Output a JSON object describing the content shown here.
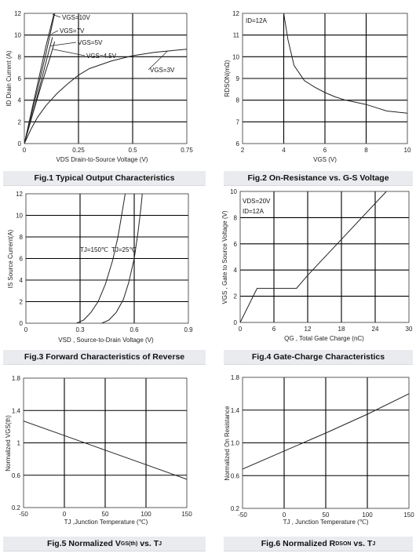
{
  "captions": [
    "Fig.1 Typical Output Characteristics",
    "Fig.2 On-Resistance vs. G-S Voltage",
    "Fig.3 Forward Characteristics of Reverse",
    "Fig.4 Gate-Charge Characteristics",
    "Fig.5 Normalized V GS(th) vs. TJ",
    "Fig.6 Normalized RDSON vs. TJ"
  ],
  "chart_data": [
    {
      "type": "line",
      "title": "Fig.1 Typical Output Characteristics",
      "xlabel": "VDS  Drain-to-Source Voltage (V)",
      "ylabel": "ID Drain Current (A)",
      "xlim": [
        0,
        0.75
      ],
      "ylim": [
        0,
        12
      ],
      "xticks": [
        "0",
        "0.25",
        "0.5",
        "0.75"
      ],
      "yticks": [
        "0",
        "2",
        "4",
        "6",
        "8",
        "10",
        "12"
      ],
      "grid": true,
      "series": [
        {
          "name": "VGS=10V",
          "x": [
            0,
            0.05,
            0.1,
            0.15
          ],
          "y": [
            0,
            4.5,
            9,
            13
          ]
        },
        {
          "name": "VGS=7V",
          "x": [
            0,
            0.05,
            0.1,
            0.14
          ],
          "y": [
            0,
            4.1,
            8.3,
            12
          ]
        },
        {
          "name": "VGS=5V",
          "x": [
            0,
            0.05,
            0.1,
            0.13
          ],
          "y": [
            0,
            3.6,
            7.5,
            9.8
          ]
        },
        {
          "name": "VGS=4.5V",
          "x": [
            0,
            0.04,
            0.08,
            0.12,
            0.14
          ],
          "y": [
            0,
            2.8,
            5.5,
            8.0,
            9.4
          ]
        },
        {
          "name": "VGS=3V",
          "x": [
            0,
            0.03,
            0.06,
            0.1,
            0.15,
            0.2,
            0.25,
            0.3,
            0.4,
            0.5,
            0.6,
            0.7,
            0.75
          ],
          "y": [
            0,
            1.3,
            2.4,
            3.5,
            4.6,
            5.5,
            6.3,
            6.9,
            7.6,
            8.1,
            8.4,
            8.6,
            8.7
          ]
        }
      ]
    },
    {
      "type": "line",
      "title": "Fig.2 On-Resistance vs. G-S Voltage",
      "xlabel": "VGS (V)",
      "ylabel": "RDSON(mΩ)",
      "annotation": "ID=12A",
      "xlim": [
        2,
        10
      ],
      "ylim": [
        6,
        12
      ],
      "xticks": [
        "2",
        "4",
        "6",
        "8",
        "10"
      ],
      "yticks": [
        "6",
        "7",
        "8",
        "9",
        "10",
        "11",
        "12"
      ],
      "grid": true,
      "series": [
        {
          "name": "",
          "x": [
            4.0,
            4.2,
            4.5,
            5.0,
            5.5,
            6.0,
            6.5,
            7.0,
            7.5,
            8.0,
            8.5,
            9.0,
            9.5,
            10.0
          ],
          "y": [
            12.0,
            10.8,
            9.6,
            8.9,
            8.6,
            8.35,
            8.15,
            8.0,
            7.9,
            7.8,
            7.65,
            7.5,
            7.45,
            7.4
          ]
        }
      ]
    },
    {
      "type": "line",
      "title": "Fig.3 Forward Characteristics of Reverse",
      "xlabel": "VSD , Source-to-Drain Voltage (V)",
      "ylabel": "IS Source Current(A)",
      "xlim": [
        0,
        0.9
      ],
      "ylim": [
        0,
        12
      ],
      "xticks": [
        "0",
        "0.3",
        "0.6",
        "0.9"
      ],
      "yticks": [
        "0",
        "2",
        "4",
        "6",
        "8",
        "10",
        "12"
      ],
      "grid": true,
      "labels": [
        "TJ=150℃",
        "TJ=25℃"
      ],
      "series": [
        {
          "name": "TJ=150℃",
          "x": [
            0.28,
            0.32,
            0.36,
            0.4,
            0.44,
            0.48,
            0.51,
            0.535,
            0.55
          ],
          "y": [
            0,
            0.3,
            1.0,
            2.0,
            3.6,
            5.8,
            8.0,
            10.5,
            12.0
          ]
        },
        {
          "name": "TJ=25℃",
          "x": [
            0.42,
            0.46,
            0.5,
            0.54,
            0.57,
            0.6,
            0.62,
            0.635,
            0.645
          ],
          "y": [
            0,
            0.3,
            1.0,
            2.2,
            3.8,
            6.0,
            8.3,
            10.4,
            12.0
          ]
        }
      ]
    },
    {
      "type": "line",
      "title": "Fig.4 Gate-Charge Characteristics",
      "xlabel": "QG , Total Gate Charge (nC)",
      "ylabel": "VGS , Gate to Source Voltage (V)",
      "annotation": [
        "VDS=20V",
        "ID=12A"
      ],
      "xlim": [
        0,
        30
      ],
      "ylim": [
        0,
        10
      ],
      "xticks": [
        "0",
        "6",
        "12",
        "18",
        "24",
        "30"
      ],
      "yticks": [
        "0",
        "2",
        "4",
        "6",
        "8",
        "10"
      ],
      "grid": true,
      "series": [
        {
          "name": "",
          "x": [
            0,
            3,
            10,
            12,
            26
          ],
          "y": [
            0,
            2.6,
            2.6,
            3.6,
            10
          ]
        }
      ]
    },
    {
      "type": "line",
      "title": "Fig.5 Normalized VGS(th) vs. TJ",
      "xlabel": "TJ ,Junction Temperature (℃)",
      "ylabel": "Normalized VGS(th)",
      "xlim": [
        -50,
        150
      ],
      "ylim": [
        0.2,
        1.8
      ],
      "xticks": [
        "-50",
        "0",
        "50",
        "100",
        "150"
      ],
      "yticks": [
        "0.2",
        "0.6",
        "1",
        "1.4",
        "1.8"
      ],
      "grid": true,
      "series": [
        {
          "name": "",
          "x": [
            -50,
            0,
            50,
            100,
            150
          ],
          "y": [
            1.27,
            1.09,
            0.91,
            0.73,
            0.55
          ]
        }
      ]
    },
    {
      "type": "line",
      "title": "Fig.6 Normalized RDSON vs. TJ",
      "xlabel": "TJ , Junction Temperature (℃)",
      "ylabel": "Normalized On Resistance",
      "xlim": [
        -50,
        150
      ],
      "ylim": [
        0.2,
        1.8
      ],
      "xticks": [
        "-50",
        "0",
        "50",
        "100",
        "150"
      ],
      "yticks": [
        "0.2",
        "0.6",
        "1.0",
        "1.4",
        "1.8"
      ],
      "grid": true,
      "series": [
        {
          "name": "",
          "x": [
            -50,
            0,
            50,
            100,
            150
          ],
          "y": [
            0.68,
            0.9,
            1.12,
            1.35,
            1.6
          ]
        }
      ]
    }
  ]
}
